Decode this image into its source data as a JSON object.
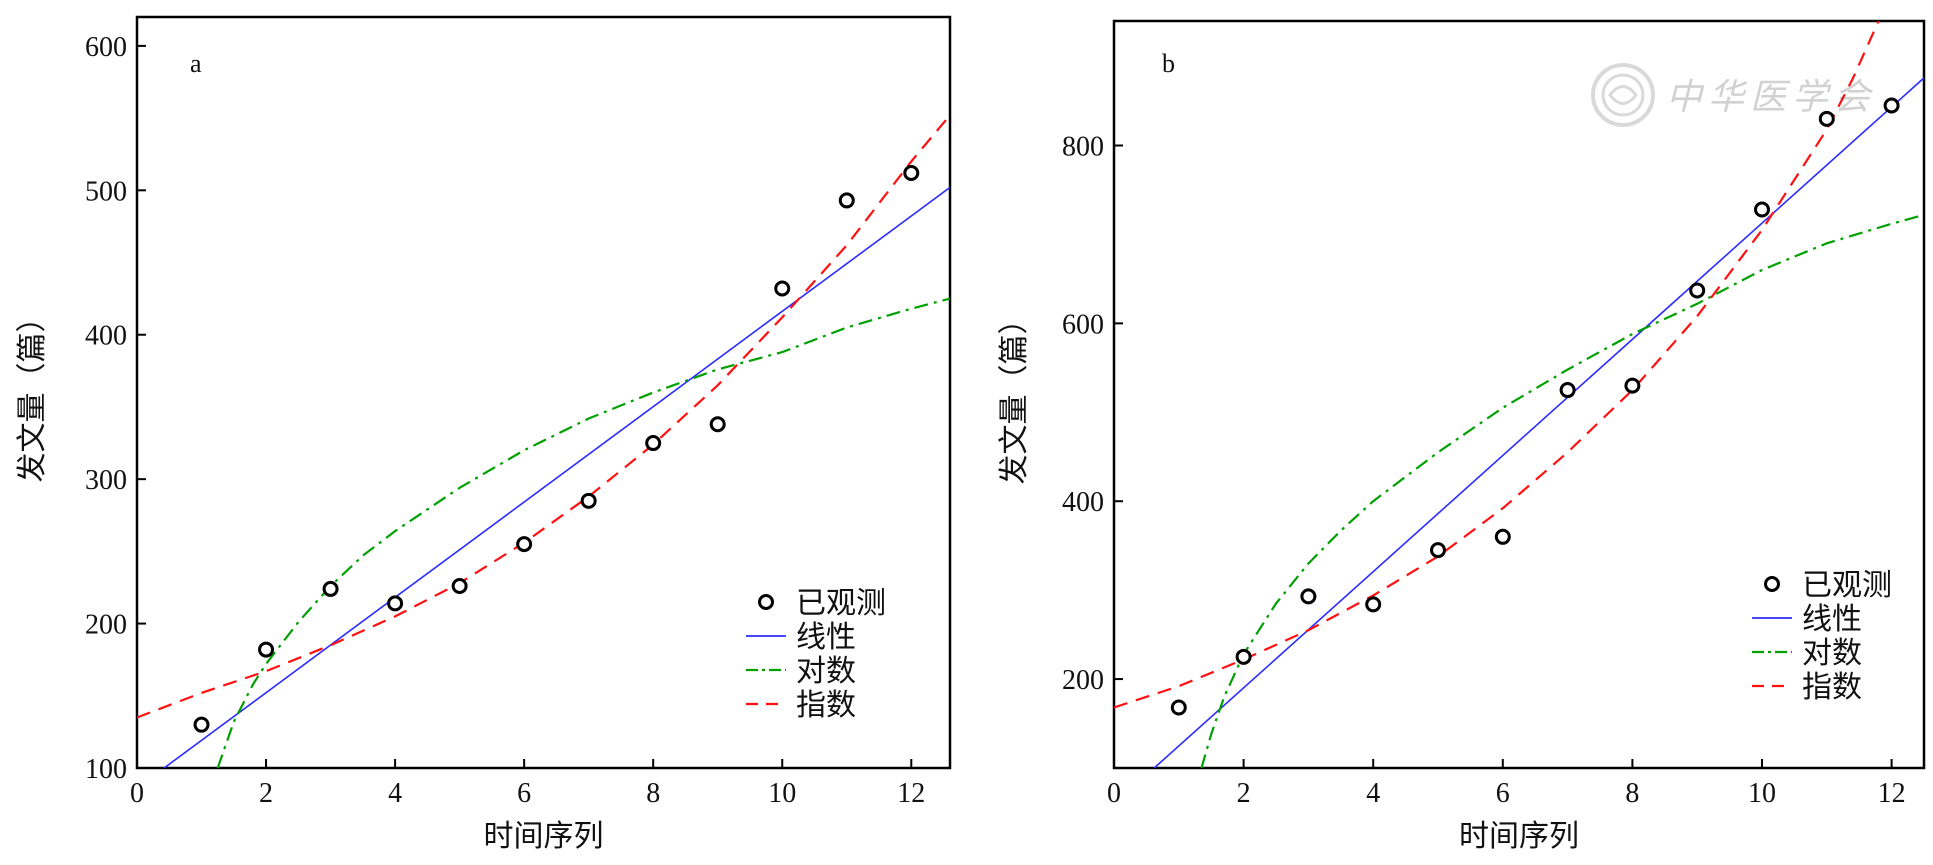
{
  "colors": {
    "linear": "#2b2bff",
    "logarithmic": "#00a000",
    "exponential": "#ff1010",
    "observed": "#000000"
  },
  "chart_data": [
    {
      "type": "scatter",
      "panel_label": "a",
      "xlabel": "时间序列",
      "ylabel": "发文量（篇）",
      "xlim": [
        0,
        12.6
      ],
      "ylim": [
        100,
        620
      ],
      "x_ticks": [
        "0",
        "2",
        "4",
        "6",
        "8",
        "10",
        "12"
      ],
      "y_ticks": [
        "100",
        "200",
        "300",
        "400",
        "500",
        "600"
      ],
      "legend_position": "bottom-right",
      "legend": [
        "已观测",
        "线性",
        "对数",
        "指数"
      ],
      "observed": {
        "name": "已观测",
        "x": [
          1,
          2,
          3,
          4,
          5,
          6,
          7,
          8,
          9,
          10,
          11,
          12
        ],
        "y": [
          130,
          182,
          224,
          214,
          226,
          255,
          285,
          325,
          338,
          432,
          493,
          512
        ]
      },
      "linear": {
        "name": "线性",
        "x": [
          0.42,
          12.6
        ],
        "y": [
          100,
          502
        ]
      },
      "logarithmic": {
        "name": "对数",
        "x": [
          1.25,
          1.5,
          1.8,
          2,
          2.5,
          3,
          3.5,
          4,
          5,
          6,
          7,
          8,
          9,
          10,
          11,
          12,
          12.6
        ],
        "y": [
          100,
          132,
          158,
          172,
          201,
          226,
          247,
          264,
          294,
          320,
          342,
          360,
          376,
          388,
          405,
          418,
          425
        ]
      },
      "exponential": {
        "name": "指数",
        "x": [
          0,
          1,
          2,
          3,
          4,
          5,
          6,
          7,
          8,
          9,
          10,
          11,
          12,
          12.6
        ],
        "y": [
          135,
          152,
          167,
          185,
          205,
          228,
          256,
          288,
          324,
          365,
          412,
          462,
          520,
          552
        ]
      }
    },
    {
      "type": "scatter",
      "panel_label": "b",
      "xlabel": "时间序列",
      "ylabel": "发文量（篇）",
      "xlim": [
        0,
        12.5
      ],
      "ylim": [
        100,
        940
      ],
      "x_ticks": [
        "0",
        "2",
        "4",
        "6",
        "8",
        "10",
        "12"
      ],
      "y_ticks": [
        "200",
        "400",
        "600",
        "800"
      ],
      "legend_position": "bottom-right",
      "legend": [
        "已观测",
        "线性",
        "对数",
        "指数"
      ],
      "observed": {
        "name": "已观测",
        "x": [
          1,
          2,
          3,
          4,
          5,
          6,
          7,
          8,
          9,
          10,
          11,
          12
        ],
        "y": [
          168,
          225,
          293,
          284,
          345,
          360,
          525,
          530,
          637,
          728,
          830,
          845
        ]
      },
      "linear": {
        "name": "线性",
        "x": [
          0.62,
          12.5
        ],
        "y": [
          100,
          876
        ]
      },
      "logarithmic": {
        "name": "对数",
        "x": [
          1.35,
          1.5,
          1.7,
          2,
          2.5,
          3,
          3.5,
          4,
          5,
          6,
          7,
          8,
          9,
          10,
          11,
          12,
          12.5
        ],
        "y": [
          100,
          138,
          180,
          228,
          285,
          330,
          367,
          400,
          455,
          505,
          548,
          588,
          622,
          660,
          690,
          712,
          722
        ]
      },
      "exponential": {
        "name": "指数",
        "x": [
          0,
          1,
          2,
          3,
          4,
          5,
          6,
          7,
          8,
          9,
          10,
          11,
          11.4,
          11.8
        ],
        "y": [
          168,
          192,
          222,
          255,
          294,
          338,
          392,
          455,
          525,
          608,
          705,
          818,
          875,
          940
        ]
      }
    }
  ]
}
